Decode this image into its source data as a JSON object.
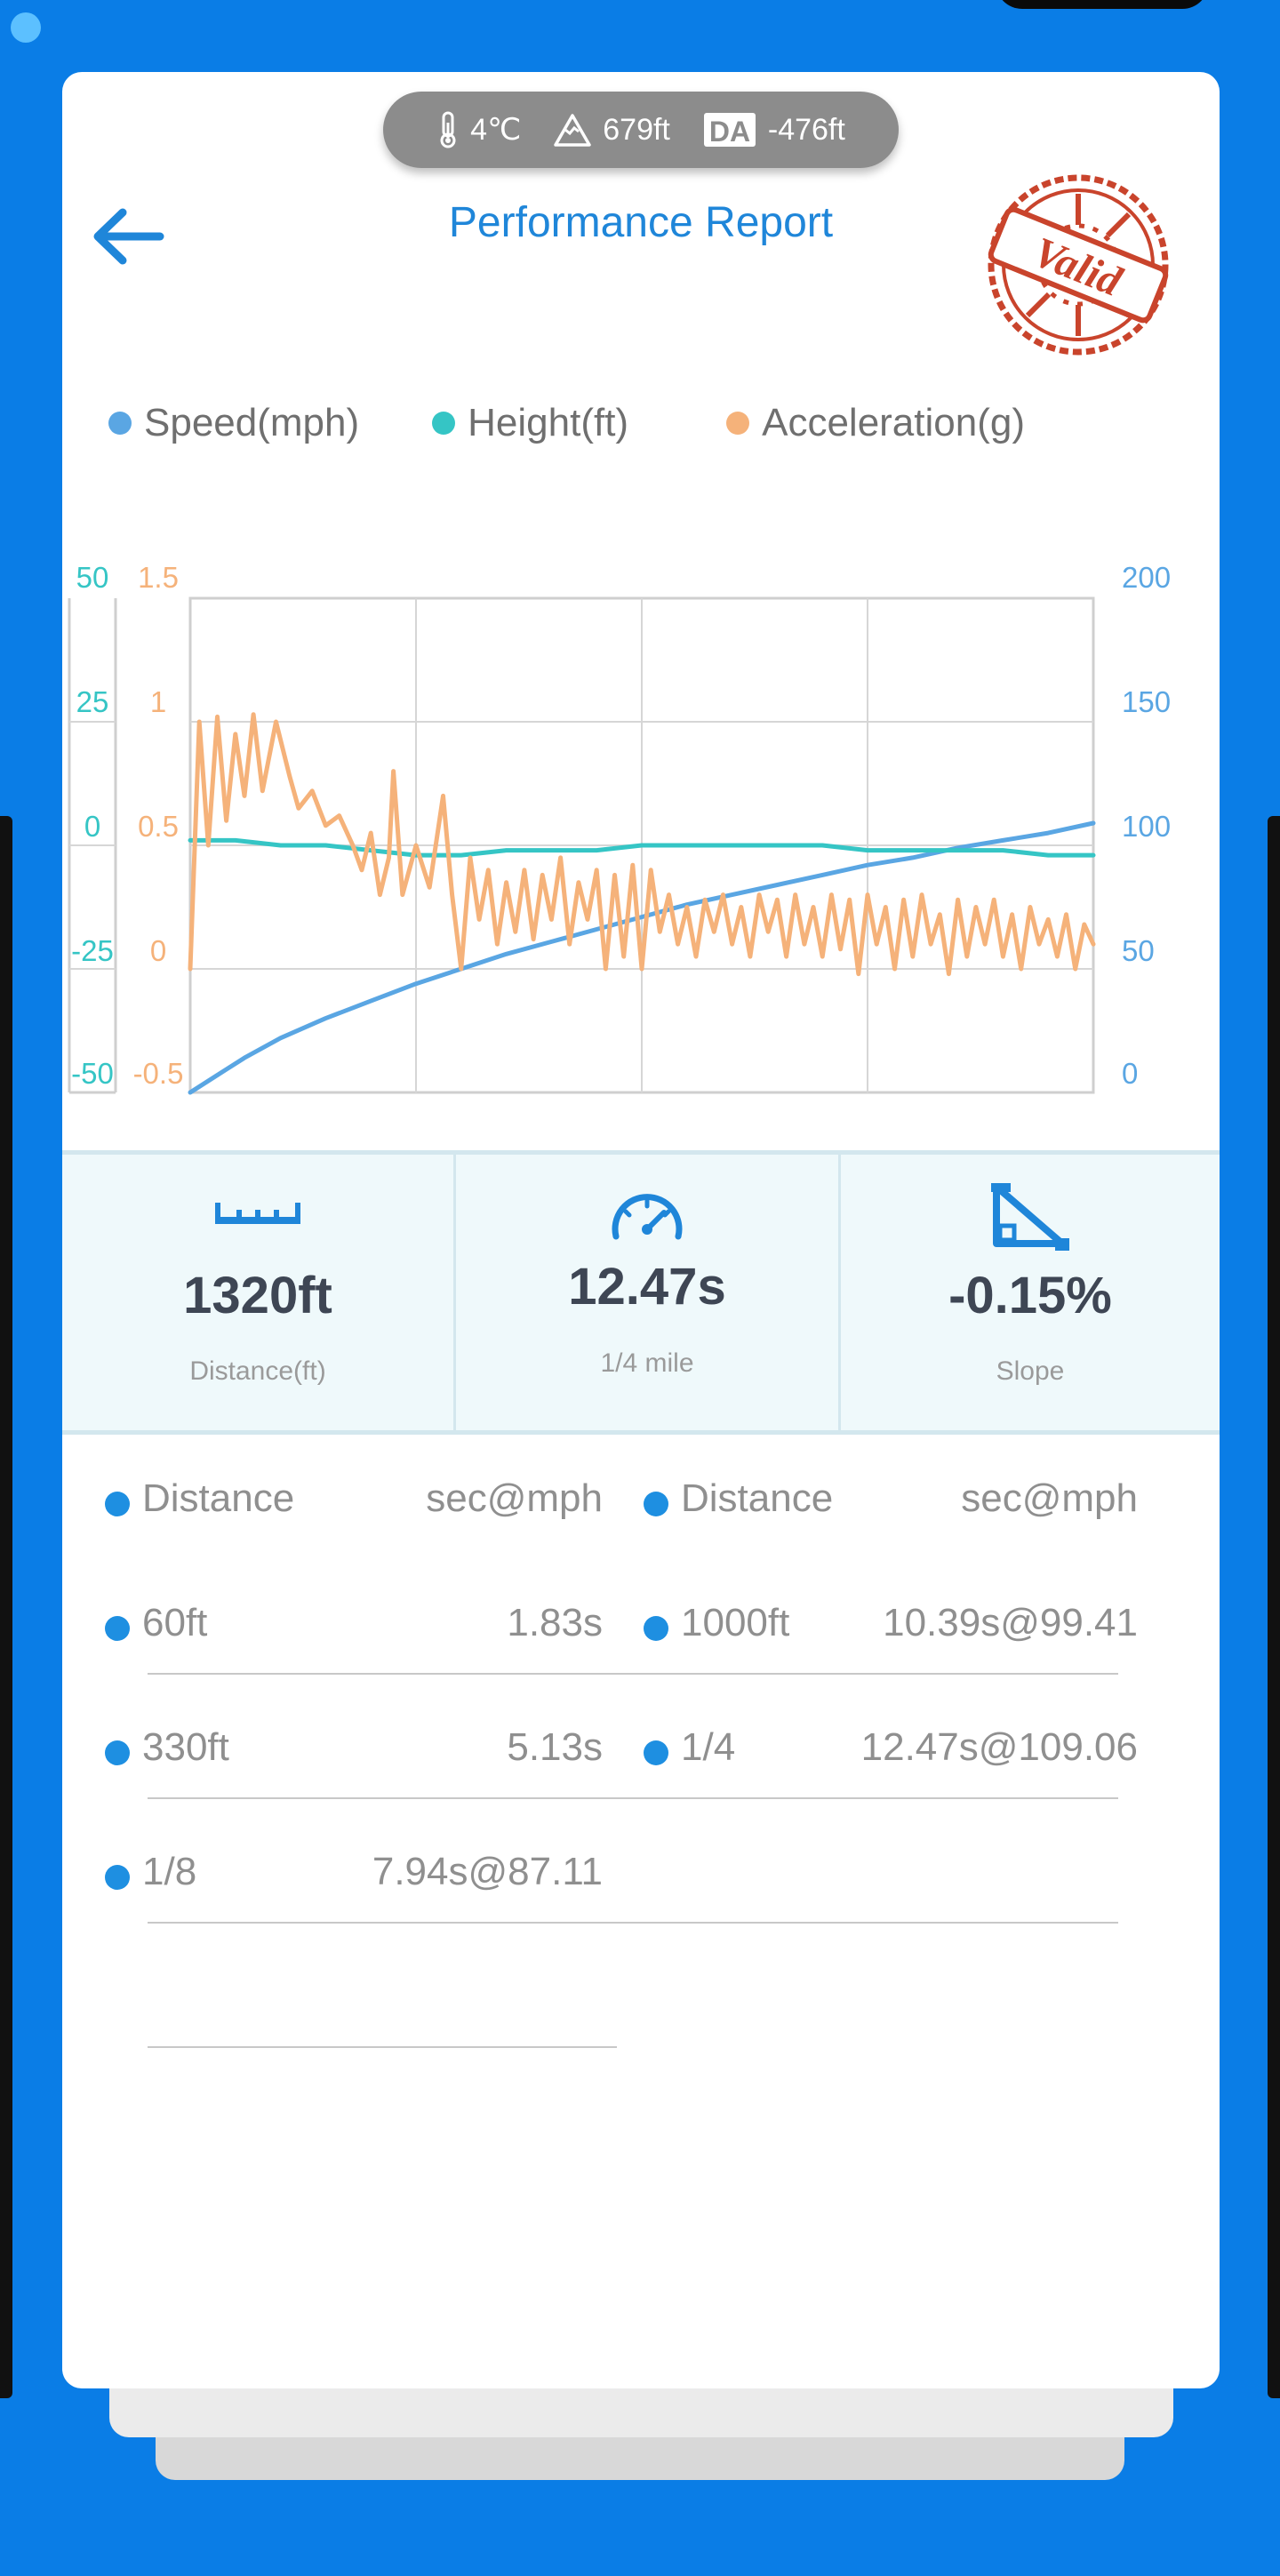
{
  "weather": {
    "temperature": "4℃",
    "altitude": "679ft",
    "density_altitude_badge": "DA",
    "density_altitude": "-476ft"
  },
  "header": {
    "title": "Performance Report"
  },
  "stamp": {
    "text": "Valid",
    "color": "#c9442c"
  },
  "legend": {
    "items": [
      {
        "label": "Speed(mph)",
        "color": "#5aa6e3"
      },
      {
        "label": "Height(ft)",
        "color": "#35c5c5"
      },
      {
        "label": "Acceleration(g)",
        "color": "#f5b27a"
      }
    ]
  },
  "chart_data": {
    "type": "line",
    "grid": true,
    "axes": {
      "height_left": {
        "ticks": [
          "50",
          "25",
          "0",
          "-25",
          "-50"
        ],
        "range": [
          -50,
          50
        ],
        "color": "#35c5c5"
      },
      "accel_left": {
        "ticks": [
          "1.5",
          "1",
          "0.5",
          "0",
          "-0.5"
        ],
        "range": [
          -0.5,
          1.5
        ],
        "color": "#f5b27a"
      },
      "speed_right": {
        "ticks": [
          "200",
          "150",
          "100",
          "50",
          "0"
        ],
        "range": [
          0,
          200
        ],
        "color": "#5aa6e3"
      }
    },
    "x_range": [
      0,
      1
    ],
    "series": [
      {
        "name": "Speed(mph)",
        "axis": "speed_right",
        "color": "#5aa6e3",
        "points": [
          [
            0,
            0
          ],
          [
            0.03,
            7
          ],
          [
            0.06,
            14
          ],
          [
            0.1,
            22
          ],
          [
            0.15,
            30
          ],
          [
            0.2,
            37
          ],
          [
            0.25,
            44
          ],
          [
            0.3,
            50
          ],
          [
            0.35,
            56
          ],
          [
            0.4,
            61
          ],
          [
            0.45,
            66
          ],
          [
            0.5,
            71
          ],
          [
            0.55,
            76
          ],
          [
            0.6,
            80
          ],
          [
            0.65,
            84
          ],
          [
            0.7,
            88
          ],
          [
            0.75,
            92
          ],
          [
            0.8,
            95
          ],
          [
            0.85,
            99
          ],
          [
            0.9,
            102
          ],
          [
            0.95,
            105
          ],
          [
            1.0,
            109
          ]
        ]
      },
      {
        "name": "Height(ft)",
        "axis": "height_left",
        "color": "#35c5c5",
        "points": [
          [
            0,
            1
          ],
          [
            0.05,
            1
          ],
          [
            0.1,
            0
          ],
          [
            0.15,
            0
          ],
          [
            0.2,
            -1
          ],
          [
            0.25,
            -2
          ],
          [
            0.3,
            -2
          ],
          [
            0.35,
            -1
          ],
          [
            0.4,
            -1
          ],
          [
            0.45,
            -1
          ],
          [
            0.5,
            0
          ],
          [
            0.55,
            0
          ],
          [
            0.6,
            0
          ],
          [
            0.65,
            0
          ],
          [
            0.7,
            0
          ],
          [
            0.75,
            -1
          ],
          [
            0.8,
            -1
          ],
          [
            0.85,
            -1
          ],
          [
            0.9,
            -1
          ],
          [
            0.95,
            -2
          ],
          [
            1.0,
            -2
          ]
        ]
      },
      {
        "name": "Acceleration(g)",
        "axis": "accel_left",
        "color": "#f5b27a",
        "points": [
          [
            0,
            0
          ],
          [
            0.01,
            1.0
          ],
          [
            0.02,
            0.5
          ],
          [
            0.03,
            1.02
          ],
          [
            0.04,
            0.6
          ],
          [
            0.05,
            0.95
          ],
          [
            0.06,
            0.7
          ],
          [
            0.07,
            1.03
          ],
          [
            0.08,
            0.72
          ],
          [
            0.095,
            1.0
          ],
          [
            0.11,
            0.78
          ],
          [
            0.12,
            0.65
          ],
          [
            0.135,
            0.72
          ],
          [
            0.15,
            0.58
          ],
          [
            0.165,
            0.62
          ],
          [
            0.18,
            0.5
          ],
          [
            0.19,
            0.4
          ],
          [
            0.2,
            0.55
          ],
          [
            0.21,
            0.3
          ],
          [
            0.22,
            0.45
          ],
          [
            0.225,
            0.8
          ],
          [
            0.235,
            0.3
          ],
          [
            0.25,
            0.5
          ],
          [
            0.265,
            0.33
          ],
          [
            0.28,
            0.7
          ],
          [
            0.29,
            0.3
          ],
          [
            0.3,
            0.0
          ],
          [
            0.31,
            0.45
          ],
          [
            0.32,
            0.2
          ],
          [
            0.33,
            0.4
          ],
          [
            0.34,
            0.1
          ],
          [
            0.35,
            0.35
          ],
          [
            0.36,
            0.15
          ],
          [
            0.37,
            0.4
          ],
          [
            0.38,
            0.12
          ],
          [
            0.39,
            0.38
          ],
          [
            0.4,
            0.2
          ],
          [
            0.41,
            0.45
          ],
          [
            0.42,
            0.1
          ],
          [
            0.43,
            0.35
          ],
          [
            0.44,
            0.2
          ],
          [
            0.45,
            0.4
          ],
          [
            0.46,
            0.0
          ],
          [
            0.47,
            0.38
          ],
          [
            0.48,
            0.05
          ],
          [
            0.49,
            0.42
          ],
          [
            0.5,
            0.0
          ],
          [
            0.51,
            0.4
          ],
          [
            0.52,
            0.15
          ],
          [
            0.53,
            0.3
          ],
          [
            0.54,
            0.1
          ],
          [
            0.55,
            0.25
          ],
          [
            0.56,
            0.05
          ],
          [
            0.57,
            0.28
          ],
          [
            0.58,
            0.15
          ],
          [
            0.59,
            0.3
          ],
          [
            0.6,
            0.1
          ],
          [
            0.61,
            0.25
          ],
          [
            0.62,
            0.05
          ],
          [
            0.63,
            0.3
          ],
          [
            0.64,
            0.15
          ],
          [
            0.65,
            0.28
          ],
          [
            0.66,
            0.05
          ],
          [
            0.67,
            0.3
          ],
          [
            0.68,
            0.1
          ],
          [
            0.69,
            0.25
          ],
          [
            0.7,
            0.05
          ],
          [
            0.71,
            0.3
          ],
          [
            0.72,
            0.08
          ],
          [
            0.73,
            0.28
          ],
          [
            0.74,
            -0.02
          ],
          [
            0.75,
            0.3
          ],
          [
            0.76,
            0.1
          ],
          [
            0.77,
            0.25
          ],
          [
            0.78,
            0.0
          ],
          [
            0.79,
            0.28
          ],
          [
            0.8,
            0.05
          ],
          [
            0.81,
            0.3
          ],
          [
            0.82,
            0.1
          ],
          [
            0.83,
            0.22
          ],
          [
            0.84,
            -0.02
          ],
          [
            0.85,
            0.28
          ],
          [
            0.86,
            0.05
          ],
          [
            0.87,
            0.25
          ],
          [
            0.88,
            0.1
          ],
          [
            0.89,
            0.28
          ],
          [
            0.9,
            0.05
          ],
          [
            0.91,
            0.22
          ],
          [
            0.92,
            0.0
          ],
          [
            0.93,
            0.25
          ],
          [
            0.94,
            0.1
          ],
          [
            0.95,
            0.2
          ],
          [
            0.96,
            0.05
          ],
          [
            0.97,
            0.22
          ],
          [
            0.98,
            0.0
          ],
          [
            0.99,
            0.18
          ],
          [
            1.0,
            0.1
          ]
        ]
      }
    ]
  },
  "stats": [
    {
      "icon": "ruler-icon",
      "value": "1320ft",
      "label": "Distance(ft)"
    },
    {
      "icon": "speedometer-icon",
      "value": "12.47s",
      "label": "1/4 mile"
    },
    {
      "icon": "slope-icon",
      "value": "-0.15%",
      "label": "Slope"
    }
  ],
  "splits": {
    "header": {
      "name": "Distance",
      "value": "sec@mph"
    },
    "left": [
      {
        "name": "60ft",
        "value": "1.83s"
      },
      {
        "name": "330ft",
        "value": "5.13s"
      },
      {
        "name": "1/8",
        "value": "7.94s@87.11"
      }
    ],
    "right": [
      {
        "name": "1000ft",
        "value": "10.39s@99.41"
      },
      {
        "name": "1/4",
        "value": "12.47s@109.06"
      }
    ],
    "accent_color": "#1e8fe1"
  }
}
